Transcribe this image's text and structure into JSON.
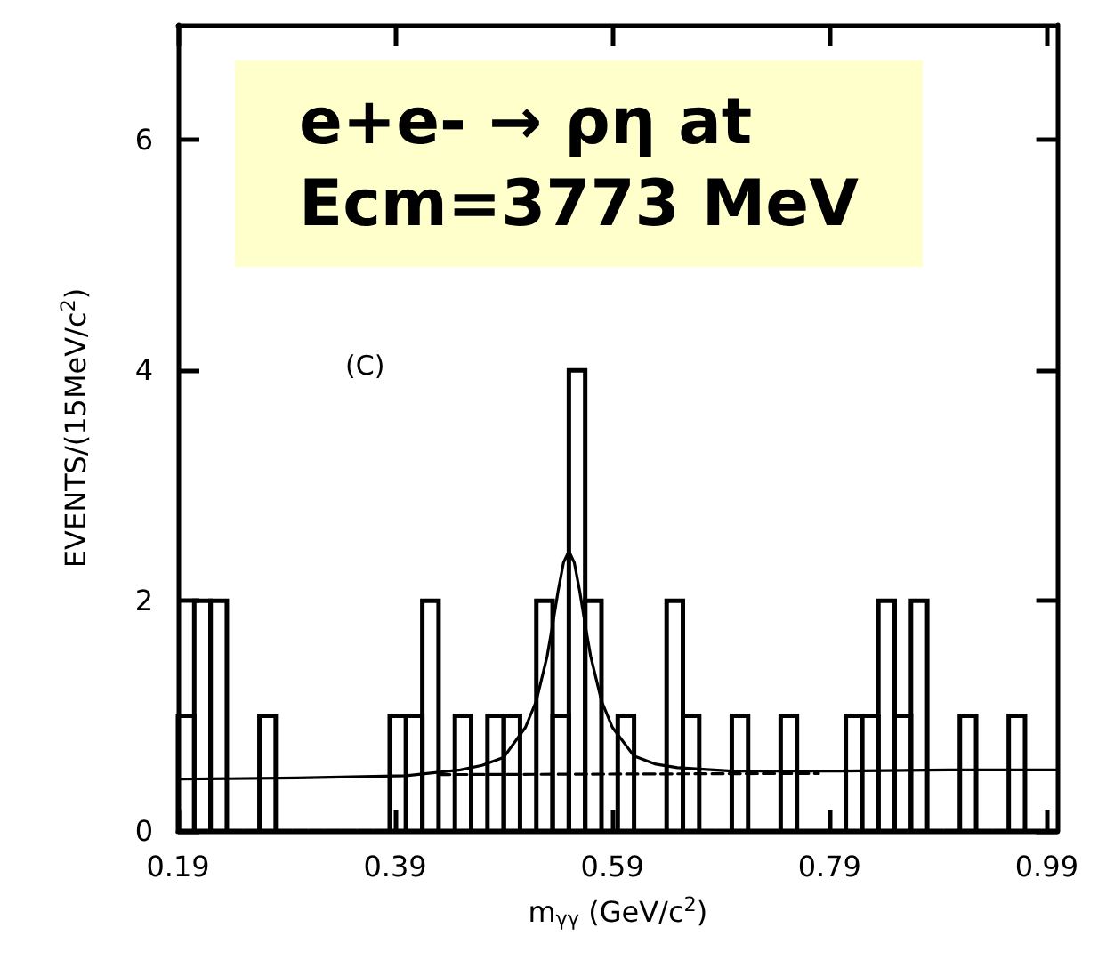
{
  "chart_data": {
    "type": "histogram",
    "title": "e+e- → ρη at\nEcm=3773 MeV",
    "xlabel": "m$_{γγ}$ (GeV/c$^{2}$)",
    "ylabel": "EVENTS/(15MeV/c$^{2}$)",
    "annotations": [
      "(C)"
    ],
    "bins": [
      0.19,
      0.205,
      0.22,
      0.235,
      0.25,
      0.265,
      0.28,
      0.295,
      0.31,
      0.325,
      0.34,
      0.355,
      0.37,
      0.385,
      0.4,
      0.415,
      0.43,
      0.445,
      0.46,
      0.475,
      0.49,
      0.505,
      0.52,
      0.535,
      0.55,
      0.565,
      0.58,
      0.595,
      0.61,
      0.625,
      0.64,
      0.655,
      0.67,
      0.685,
      0.7,
      0.715,
      0.73,
      0.745,
      0.76,
      0.775,
      0.79,
      0.805,
      0.82,
      0.835,
      0.85,
      0.865,
      0.88,
      0.895,
      0.91,
      0.925,
      0.94,
      0.955,
      0.97,
      0.985,
      1.0
    ],
    "values": [
      1,
      2,
      2,
      0,
      0,
      1,
      0,
      0,
      0,
      0,
      0,
      0,
      0,
      1,
      1,
      2,
      0,
      1,
      0,
      1,
      1,
      0,
      2,
      1,
      4,
      2,
      0,
      1,
      0,
      0,
      2,
      1,
      0,
      0,
      1,
      0,
      0,
      1,
      0,
      0,
      0,
      1,
      1,
      2,
      1,
      2,
      0,
      0,
      1,
      0,
      0,
      1,
      0,
      0
    ],
    "color": "#000000",
    "series": [
      {
        "type": "line",
        "color": "#000000",
        "line_style": "solid",
        "x": [
          0.19,
          0.3,
          0.4,
          0.45,
          0.47,
          0.49,
          0.51,
          0.52,
          0.53,
          0.535,
          0.54,
          0.545,
          0.55,
          0.555,
          0.56,
          0.565,
          0.57,
          0.58,
          0.59,
          0.61,
          0.63,
          0.65,
          0.7,
          0.8,
          0.9,
          1.0
        ],
        "values": [
          0.45,
          0.46,
          0.48,
          0.53,
          0.57,
          0.64,
          0.9,
          1.13,
          1.52,
          1.79,
          2.08,
          2.33,
          2.43,
          2.33,
          2.08,
          1.79,
          1.52,
          1.13,
          0.9,
          0.65,
          0.58,
          0.55,
          0.52,
          0.52,
          0.53,
          0.53
        ]
      },
      {
        "type": "line",
        "color": "#000000",
        "line_style": "dashed",
        "x": [
          0.43,
          0.78
        ],
        "values": [
          0.49,
          0.5
        ]
      }
    ],
    "xlim": [
      0.19,
      1.0
    ],
    "xticks": [
      0.19,
      0.39,
      0.59,
      0.79,
      0.99
    ],
    "ylim": [
      0,
      7
    ],
    "yticks": [
      0,
      2,
      4,
      6
    ],
    "grid": false,
    "marker": "none"
  }
}
